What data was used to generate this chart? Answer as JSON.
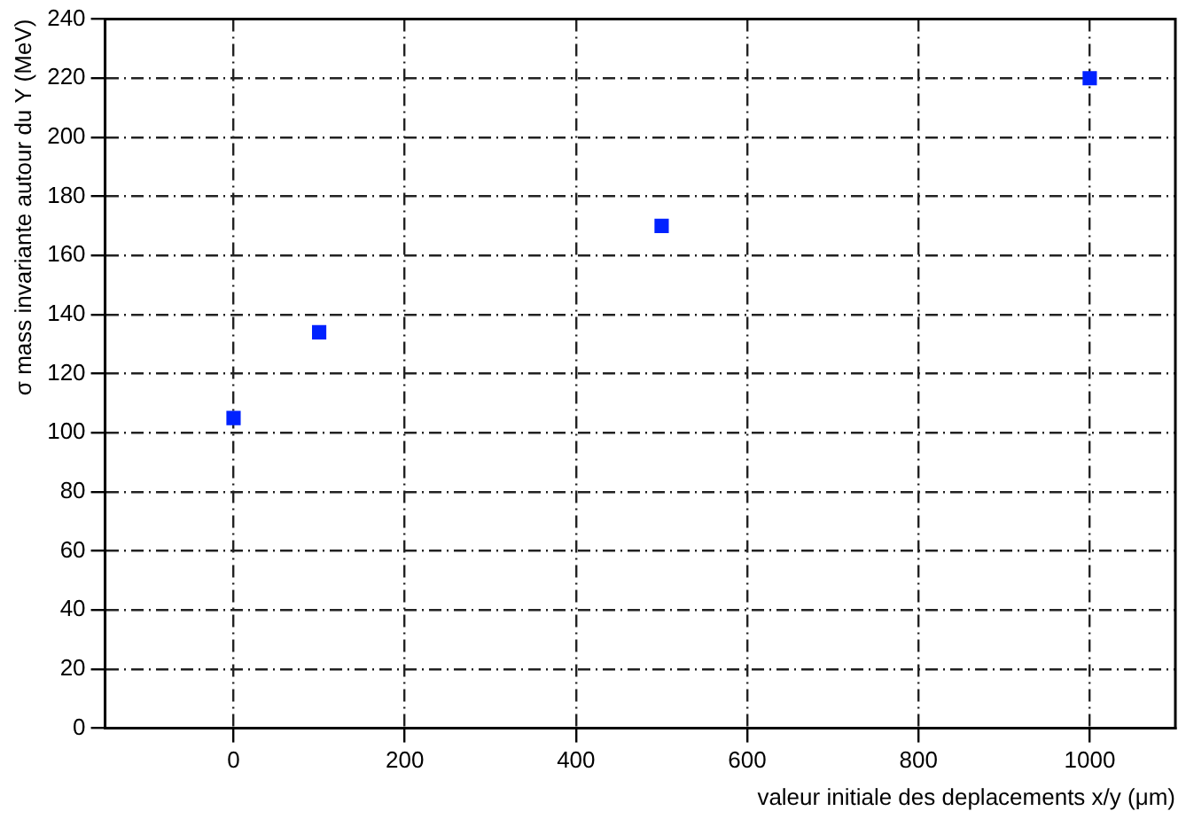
{
  "chart_data": {
    "type": "scatter",
    "xlabel": "valeur initiale des deplacements x/y (μm)",
    "ylabel": "σ mass invariante autour du Υ (MeV)",
    "x": [
      0,
      100,
      500,
      1000
    ],
    "series": [
      {
        "color": "#0022ff",
        "values": [
          105,
          134,
          170,
          220
        ]
      }
    ],
    "xlim": [
      -150,
      1100
    ],
    "xticks": [
      0,
      200,
      400,
      600,
      800,
      1000
    ],
    "ylim": [
      0,
      240
    ],
    "yticks": [
      0,
      20,
      40,
      60,
      80,
      100,
      120,
      140,
      160,
      180,
      200,
      220,
      240
    ],
    "grid": true,
    "marker": "square",
    "legend": false
  }
}
